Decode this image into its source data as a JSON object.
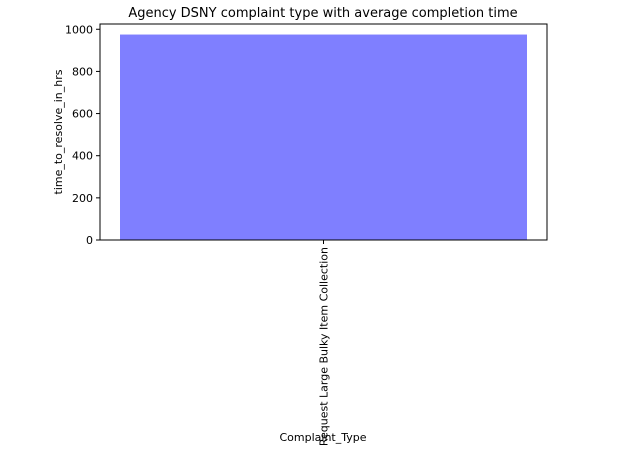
{
  "chart_data": {
    "type": "bar",
    "title": "Agency DSNY complaint type with average completion time",
    "xlabel": "Complaint_Type",
    "ylabel": "time_to_resolve_in_hrs",
    "categories": [
      "Request Large Bulky Item Collection"
    ],
    "values": [
      975
    ],
    "ylim": [
      0,
      1025
    ],
    "yticks": [
      0,
      200,
      400,
      600,
      800,
      1000
    ],
    "grid": false,
    "bar_color": "#7f7fff"
  }
}
